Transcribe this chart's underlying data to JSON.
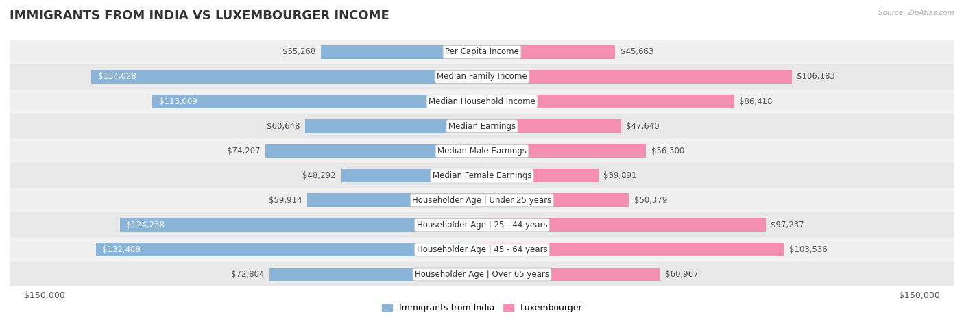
{
  "title": "IMMIGRANTS FROM INDIA VS LUXEMBOURGER INCOME",
  "source": "Source: ZipAtlas.com",
  "categories": [
    "Per Capita Income",
    "Median Family Income",
    "Median Household Income",
    "Median Earnings",
    "Median Male Earnings",
    "Median Female Earnings",
    "Householder Age | Under 25 years",
    "Householder Age | 25 - 44 years",
    "Householder Age | 45 - 64 years",
    "Householder Age | Over 65 years"
  ],
  "india_values": [
    55268,
    134028,
    113009,
    60648,
    74207,
    48292,
    59914,
    124238,
    132488,
    72804
  ],
  "luxembourger_values": [
    45663,
    106183,
    86418,
    47640,
    56300,
    39891,
    50379,
    97237,
    103536,
    60967
  ],
  "india_color": "#8ab4d8",
  "luxembourger_color": "#f48fb1",
  "india_label": "Immigrants from India",
  "luxembourger_label": "Luxembourger",
  "title_color": "#333333",
  "source_color": "#aaaaaa",
  "value_label_fontsize": 8.5,
  "category_fontsize": 8.5,
  "title_fontsize": 13,
  "xlim": 150000,
  "row_colors": [
    "#f0f0f0",
    "#e8e8e8"
  ],
  "bar_height": 0.55
}
